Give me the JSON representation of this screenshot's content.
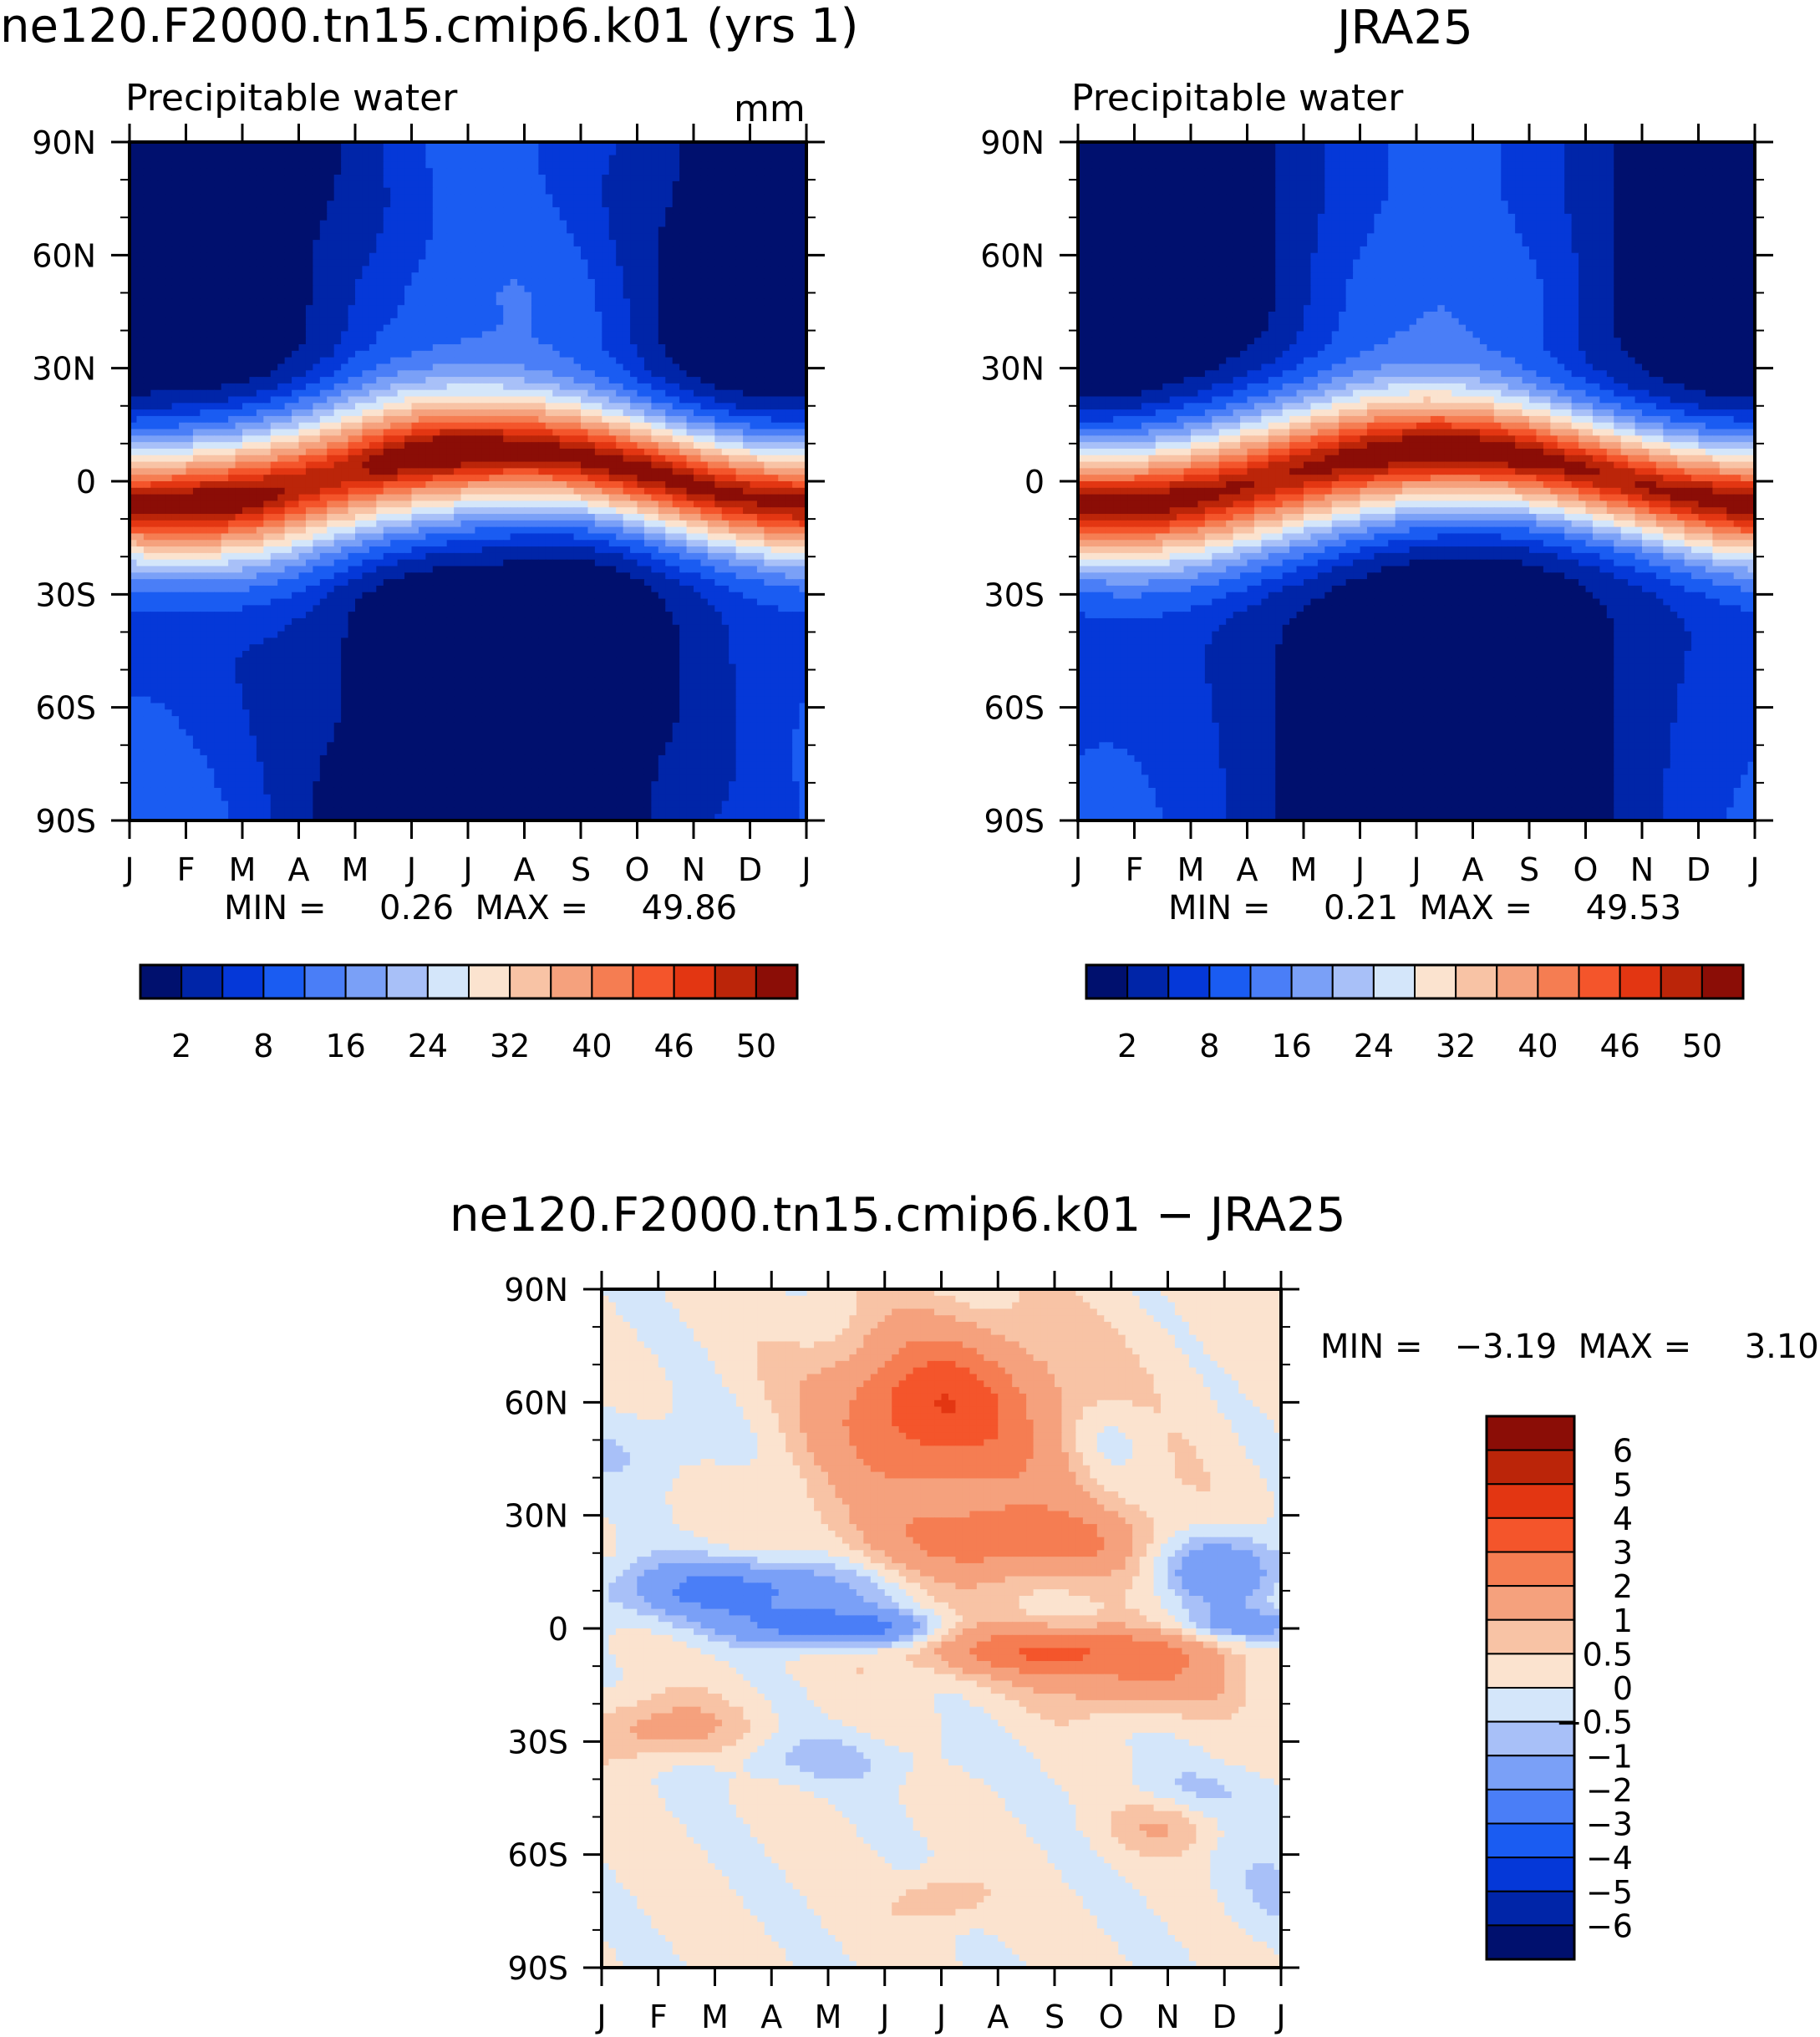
{
  "chart_data": [
    {
      "type": "heatmap",
      "title": "ne120.F2000.tn15.cmip6.k01 (yrs 1)",
      "subtitle": "Precipitable water",
      "units": "mm",
      "x": [
        "J",
        "F",
        "M",
        "A",
        "M",
        "J",
        "J",
        "A",
        "S",
        "O",
        "N",
        "D",
        "J"
      ],
      "y": [
        "90N",
        "60N",
        "30N",
        "0",
        "30S",
        "60S",
        "90S"
      ],
      "stats": "MIN =     0.26  MAX =     49.86",
      "colorbar": {
        "labels": [
          "2",
          "8",
          "16",
          "24",
          "32",
          "40",
          "46",
          "50"
        ]
      },
      "grid": false
    },
    {
      "type": "heatmap",
      "title": "JRA25",
      "subtitle": "Precipitable water",
      "x": [
        "J",
        "F",
        "M",
        "A",
        "M",
        "J",
        "J",
        "A",
        "S",
        "O",
        "N",
        "D",
        "J"
      ],
      "y": [
        "90N",
        "60N",
        "30N",
        "0",
        "30S",
        "60S",
        "90S"
      ],
      "stats": "MIN =     0.21  MAX =     49.53",
      "colorbar": {
        "labels": [
          "2",
          "8",
          "16",
          "24",
          "32",
          "40",
          "46",
          "50"
        ]
      },
      "grid": false
    },
    {
      "type": "heatmap",
      "title": "ne120.F2000.tn15.cmip6.k01 − JRA25",
      "x": [
        "J",
        "F",
        "M",
        "A",
        "M",
        "J",
        "J",
        "A",
        "S",
        "O",
        "N",
        "D",
        "J"
      ],
      "y": [
        "90N",
        "60N",
        "30N",
        "0",
        "30S",
        "60S",
        "90S"
      ],
      "stats": "MIN =   −3.19  MAX =     3.10",
      "colorbar": {
        "labels": [
          "6",
          "5",
          "4",
          "3",
          "2",
          "1",
          "0.5",
          "0",
          "−0.5",
          "−1",
          "−2",
          "−3",
          "−4",
          "−5",
          "−6"
        ]
      },
      "grid": false
    }
  ],
  "palette": [
    "#00106e",
    "#0025a8",
    "#0538d8",
    "#1a5cf2",
    "#4a7ef7",
    "#7aa0f7",
    "#a8c0f8",
    "#d4e6fa",
    "#fbe3cf",
    "#f8c3a5",
    "#f5a17d",
    "#f57d52",
    "#f4552b",
    "#e33612",
    "#bb2509",
    "#8b0d06"
  ],
  "diff_palette": [
    "#00106e",
    "#0025a8",
    "#0538d8",
    "#1a5cf2",
    "#4a7ef7",
    "#7aa0f7",
    "#a8c0f8",
    "#d4e6fa",
    "#fbe3cf",
    "#f8c3a5",
    "#f5a17d",
    "#f57d52",
    "#f4552b",
    "#e33612",
    "#bb2509",
    "#8b0d06"
  ]
}
